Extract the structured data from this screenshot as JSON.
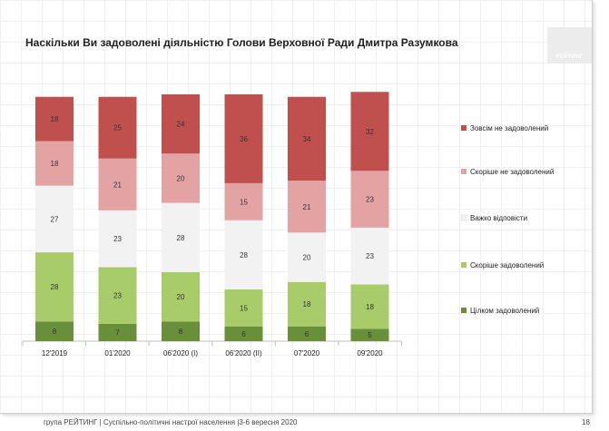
{
  "title": "Наскільки Ви задоволені діяльністю Голови Верховної Ради Дмитра Разумкова",
  "logo_text": "РЕЙТИНГ",
  "footer": "група РЕЙТИНГ | Суспільно-політичні настрої населення |3-6 вересня 2020",
  "page_number": "18",
  "chart_data": {
    "type": "bar",
    "stacked": true,
    "categories": [
      "12'2019",
      "01'2020",
      "06'2020 (І)",
      "06'2020 (ІІ)",
      "07'2020",
      "09'2020"
    ],
    "series": [
      {
        "name": "Цілком задоволений",
        "color": "#6a8f3a",
        "values": [
          8,
          7,
          8,
          6,
          6,
          5
        ]
      },
      {
        "name": "Скоріше задоволений",
        "color": "#a9cc6a",
        "values": [
          28,
          23,
          20,
          15,
          18,
          18
        ]
      },
      {
        "name": "Важко відповісти",
        "color": "#f2f2f2",
        "values": [
          27,
          23,
          28,
          28,
          20,
          23
        ]
      },
      {
        "name": "Скоріше не задоволений",
        "color": "#e3a3a3",
        "values": [
          18,
          21,
          20,
          15,
          21,
          23
        ]
      },
      {
        "name": "Зовсім не задоволений",
        "color": "#c0504d",
        "values": [
          18,
          25,
          24,
          36,
          34,
          32
        ]
      }
    ],
    "legend_position": "right",
    "ylim": [
      0,
      100
    ],
    "grid": false
  }
}
